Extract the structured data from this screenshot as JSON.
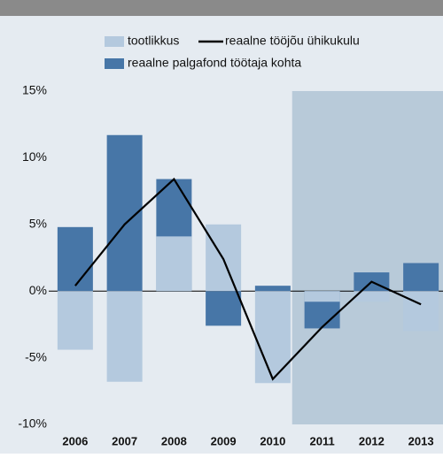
{
  "chart_data": {
    "type": "bar-line",
    "categories": [
      "2006",
      "2007",
      "2008",
      "2009",
      "2010",
      "2011",
      "2012",
      "2013"
    ],
    "series": [
      {
        "name": "tootlikkus",
        "kind": "bar",
        "color": "#b4c9de",
        "values": [
          -4.4,
          -6.8,
          4.1,
          5.0,
          -6.9,
          -0.8,
          -0.8,
          -3.0
        ]
      },
      {
        "name": "reaalne tööjõu ühikukulu",
        "kind": "line",
        "color": "#000000",
        "values": [
          0.4,
          5.0,
          8.4,
          2.4,
          -6.6,
          -2.7,
          0.7,
          -1.0
        ]
      },
      {
        "name": "reaalne palgafond töötaja kohta",
        "kind": "bar",
        "color": "#4776a7",
        "values": [
          4.8,
          11.7,
          8.4,
          -2.6,
          0.4,
          -2.8,
          1.4,
          2.1
        ]
      }
    ],
    "ylim": [
      -10,
      15
    ],
    "yticks": [
      {
        "value": -10,
        "label": "-10%"
      },
      {
        "value": -5,
        "label": "-5%"
      },
      {
        "value": 0,
        "label": "0%"
      },
      {
        "value": 5,
        "label": "5%"
      },
      {
        "value": 10,
        "label": "10%"
      },
      {
        "value": 15,
        "label": "15%"
      }
    ],
    "grid": false
  }
}
